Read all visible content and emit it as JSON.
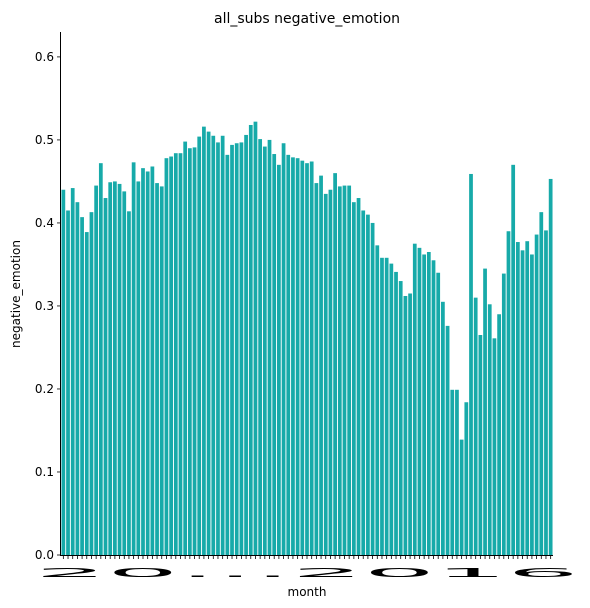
{
  "chart_data": {
    "type": "bar",
    "title": "all_subs negative_emotion",
    "xlabel": "month",
    "ylabel": "negative_emotion",
    "ylim": [
      0,
      0.63
    ],
    "yticks": [
      "0.0",
      "0.1",
      "0.2",
      "0.3",
      "0.4",
      "0.5",
      "0.6"
    ],
    "ytick_values": [
      0.0,
      0.1,
      0.2,
      0.3,
      0.4,
      0.5,
      0.6
    ],
    "xtick_text_visible": "20…2016",
    "bar_color": "#17aaa9",
    "values": [
      0.44,
      0.415,
      0.442,
      0.425,
      0.407,
      0.389,
      0.413,
      0.445,
      0.472,
      0.43,
      0.449,
      0.45,
      0.447,
      0.438,
      0.414,
      0.473,
      0.45,
      0.466,
      0.462,
      0.468,
      0.448,
      0.444,
      0.478,
      0.48,
      0.484,
      0.484,
      0.498,
      0.49,
      0.491,
      0.504,
      0.516,
      0.51,
      0.505,
      0.497,
      0.505,
      0.482,
      0.494,
      0.496,
      0.497,
      0.506,
      0.518,
      0.522,
      0.501,
      0.492,
      0.5,
      0.483,
      0.47,
      0.496,
      0.482,
      0.479,
      0.478,
      0.475,
      0.472,
      0.474,
      0.448,
      0.457,
      0.435,
      0.44,
      0.46,
      0.444,
      0.445,
      0.445,
      0.425,
      0.43,
      0.415,
      0.41,
      0.4,
      0.373,
      0.358,
      0.358,
      0.351,
      0.341,
      0.33,
      0.312,
      0.315,
      0.375,
      0.37,
      0.362,
      0.365,
      0.355,
      0.34,
      0.305,
      0.276,
      0.199,
      0.199,
      0.139,
      0.184,
      0.459,
      0.31,
      0.265,
      0.345,
      0.302,
      0.261,
      0.29,
      0.339,
      0.39,
      0.47,
      0.377,
      0.367,
      0.378,
      0.362,
      0.386,
      0.413,
      0.391,
      0.453
    ]
  }
}
